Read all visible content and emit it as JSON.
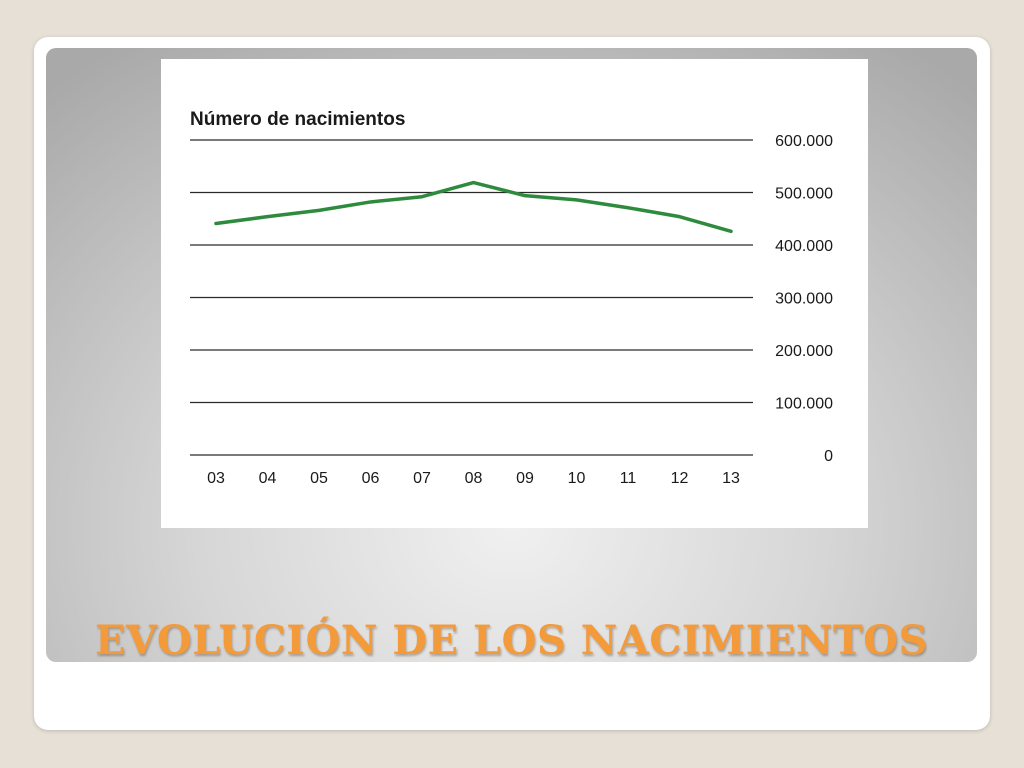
{
  "slide": {
    "title": "EVOLUCIÓN DE LOS NACIMIENTOS"
  },
  "colors": {
    "line": "#2e8b3e",
    "gridline": "#2a2a2a",
    "title": "#f39a3b"
  },
  "chart_data": {
    "type": "line",
    "title": "Número de nacimientos",
    "xlabel": "",
    "ylabel": "",
    "categories": [
      "03",
      "04",
      "05",
      "06",
      "07",
      "08",
      "09",
      "10",
      "11",
      "12",
      "13"
    ],
    "series": [
      {
        "values": [
          441000,
          454000,
          466000,
          482000,
          492000,
          519000,
          494000,
          486000,
          471000,
          454000,
          426000
        ]
      }
    ],
    "y_ticks": [
      0,
      100000,
      200000,
      300000,
      400000,
      500000,
      600000
    ],
    "y_tick_labels": [
      "0",
      "100.000",
      "200.000",
      "300.000",
      "400.000",
      "500.000",
      "600.000"
    ],
    "ylim": [
      0,
      600000
    ],
    "y_axis_side": "right",
    "grid": true,
    "legend": "none"
  }
}
